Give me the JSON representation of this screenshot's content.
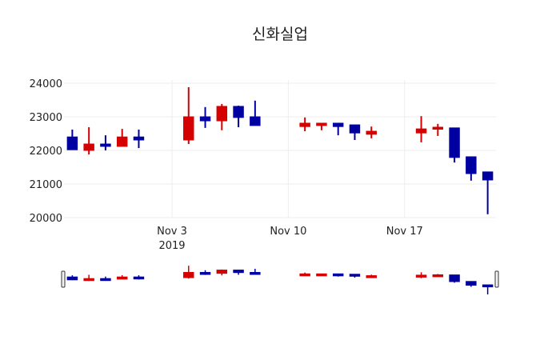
{
  "title": "신화실업",
  "colors": {
    "increasing": "#d50000",
    "decreasing": "#0000a0",
    "grid": "#eeeeee"
  },
  "chart_data": {
    "type": "candlestick",
    "title": "신화실업",
    "xlabel": "",
    "ylabel": "",
    "ylim": [
      20000,
      24000
    ],
    "y_ticks": [
      20000,
      21000,
      22000,
      23000,
      24000
    ],
    "x_ticks": [
      {
        "label": "Nov 3",
        "sub": "2019",
        "date": "2019-11-03"
      },
      {
        "label": "Nov 10",
        "sub": "",
        "date": "2019-11-10"
      },
      {
        "label": "Nov 17",
        "sub": "",
        "date": "2019-11-17"
      }
    ],
    "x_range": [
      "2019-10-27T12:00",
      "2019-11-22T12:00"
    ],
    "grid": true,
    "rangeslider": true,
    "increasing_color": "#d50000",
    "decreasing_color": "#0000a0",
    "data": [
      {
        "date": "2019-10-28",
        "open": 22400,
        "high": 22620,
        "low": 22020,
        "close": 22020
      },
      {
        "date": "2019-10-29",
        "open": 22000,
        "high": 22690,
        "low": 21880,
        "close": 22190
      },
      {
        "date": "2019-10-30",
        "open": 22190,
        "high": 22450,
        "low": 22000,
        "close": 22120
      },
      {
        "date": "2019-10-31",
        "open": 22120,
        "high": 22640,
        "low": 22120,
        "close": 22400
      },
      {
        "date": "2019-11-01",
        "open": 22400,
        "high": 22620,
        "low": 22070,
        "close": 22310
      },
      {
        "date": "2019-11-04",
        "open": 22310,
        "high": 23880,
        "low": 22190,
        "close": 23000
      },
      {
        "date": "2019-11-05",
        "open": 23000,
        "high": 23290,
        "low": 22670,
        "close": 22880
      },
      {
        "date": "2019-11-06",
        "open": 22880,
        "high": 23380,
        "low": 22600,
        "close": 23310
      },
      {
        "date": "2019-11-07",
        "open": 23310,
        "high": 23330,
        "low": 22690,
        "close": 22980
      },
      {
        "date": "2019-11-08",
        "open": 23000,
        "high": 23480,
        "low": 22740,
        "close": 22740
      },
      {
        "date": "2019-11-11",
        "open": 22710,
        "high": 22980,
        "low": 22570,
        "close": 22810
      },
      {
        "date": "2019-11-12",
        "open": 22740,
        "high": 22810,
        "low": 22600,
        "close": 22810
      },
      {
        "date": "2019-11-13",
        "open": 22810,
        "high": 22810,
        "low": 22450,
        "close": 22710
      },
      {
        "date": "2019-11-14",
        "open": 22760,
        "high": 22760,
        "low": 22310,
        "close": 22520
      },
      {
        "date": "2019-11-15",
        "open": 22480,
        "high": 22710,
        "low": 22360,
        "close": 22570
      },
      {
        "date": "2019-11-18",
        "open": 22520,
        "high": 23020,
        "low": 22240,
        "close": 22640
      },
      {
        "date": "2019-11-19",
        "open": 22640,
        "high": 22790,
        "low": 22430,
        "close": 22690
      },
      {
        "date": "2019-11-20",
        "open": 22670,
        "high": 22670,
        "low": 21640,
        "close": 21790
      },
      {
        "date": "2019-11-21",
        "open": 21810,
        "high": 21810,
        "low": 21100,
        "close": 21310
      },
      {
        "date": "2019-11-22",
        "open": 21360,
        "high": 21360,
        "low": 20100,
        "close": 21120
      }
    ]
  }
}
